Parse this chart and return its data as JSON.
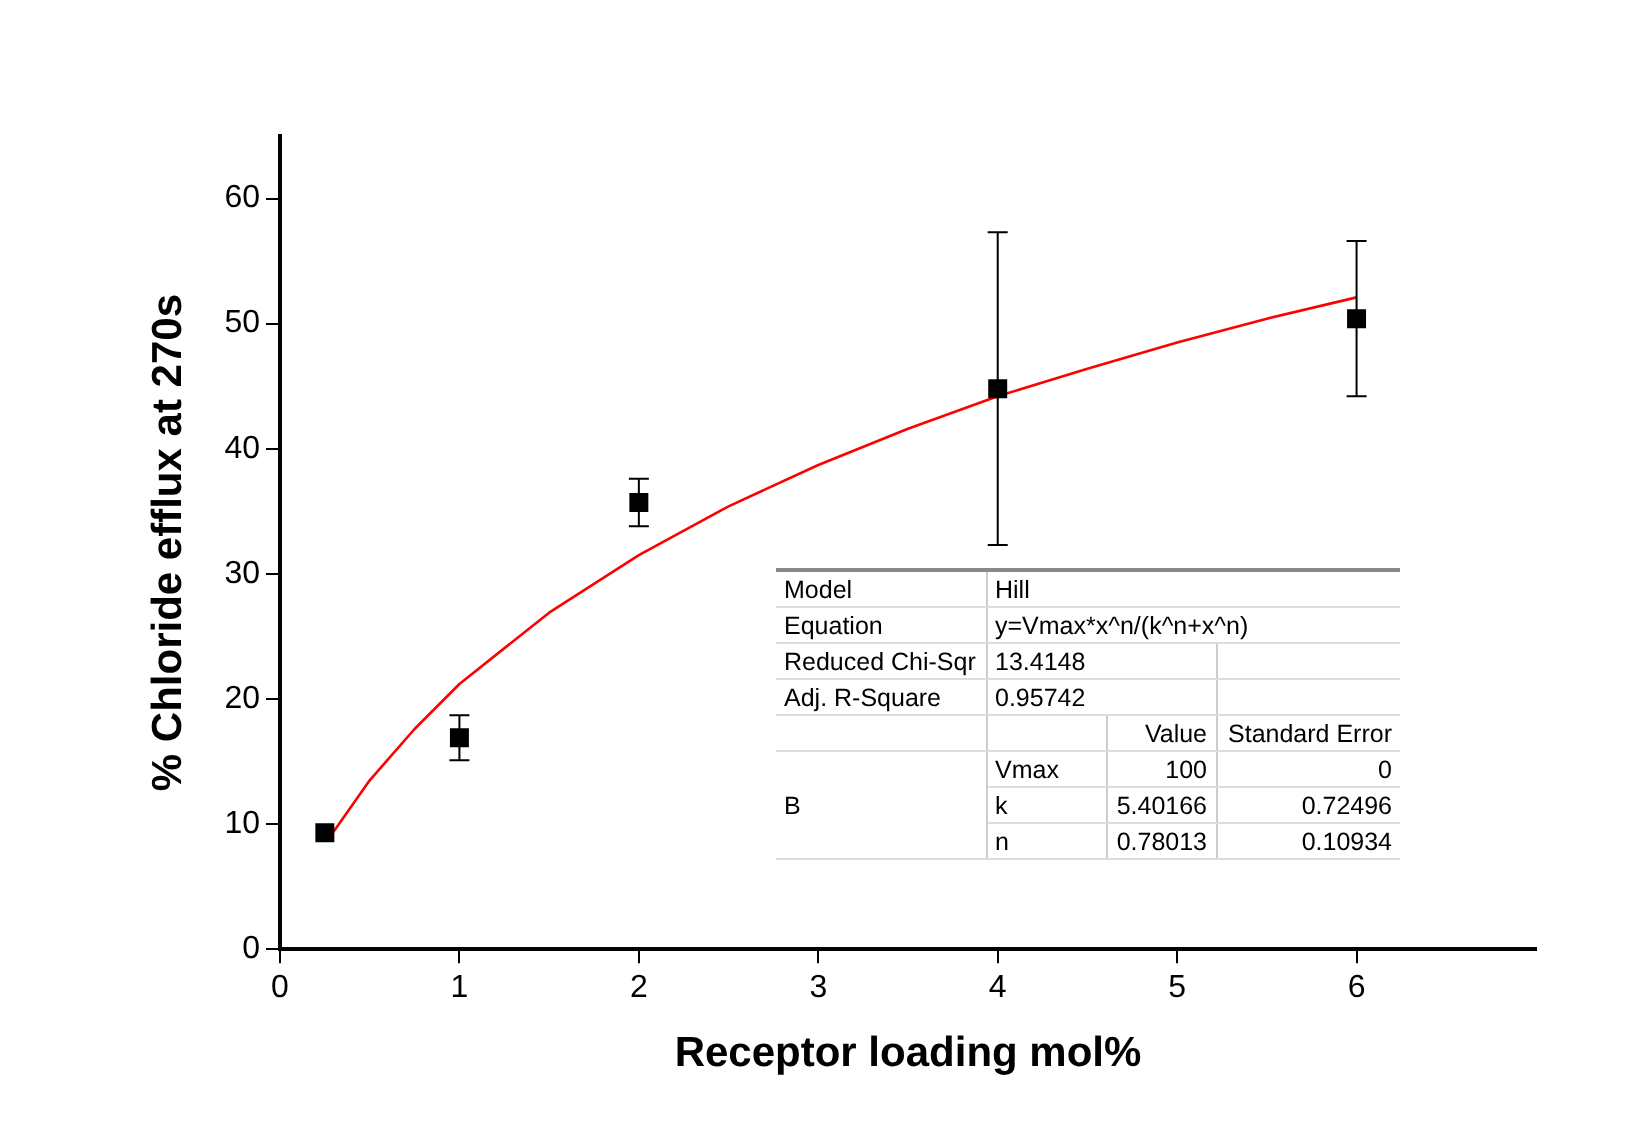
{
  "chart_data": {
    "type": "scatter",
    "xlabel": "Receptor loading mol%",
    "ylabel": "% Chloride efflux at 270s",
    "xlim": [
      0,
      7
    ],
    "xticks": [
      0,
      1,
      2,
      3,
      4,
      5,
      6
    ],
    "ylim": [
      0,
      65
    ],
    "yticks": [
      0,
      10,
      20,
      30,
      40,
      50,
      60
    ],
    "grid": false,
    "legend": false,
    "marker": "square",
    "series": [
      {
        "type": "scatter",
        "color": "#000000",
        "x": [
          0.25,
          1,
          2,
          4,
          6
        ],
        "values": [
          9.3,
          16.9,
          35.7,
          44.8,
          50.4
        ],
        "errors": [
          null,
          1.8,
          1.9,
          12.5,
          6.2
        ]
      },
      {
        "type": "line",
        "color": "#ff0000",
        "marker": "none",
        "x": [
          0.27,
          0.5,
          0.75,
          1,
          1.5,
          2,
          2.5,
          3,
          3.5,
          4,
          4.5,
          5,
          5.5,
          6
        ],
        "values": [
          8.8,
          13.5,
          17.6,
          21.2,
          26.9,
          31.5,
          35.4,
          38.7,
          41.6,
          44.2,
          46.4,
          48.5,
          50.4,
          52.1
        ]
      }
    ],
    "annotations": [
      "Model",
      "Hill",
      "Equation",
      "y=Vmax*x^n/(k^n+x^n)",
      "Reduced Chi-Sqr",
      "13.4148",
      "Adj. R-Square",
      "0.95742",
      "Value",
      "Standard Error",
      "B",
      "Vmax",
      "100",
      "0",
      "k",
      "5.40166",
      "0.72496",
      "n",
      "0.78013",
      "0.10934"
    ]
  }
}
